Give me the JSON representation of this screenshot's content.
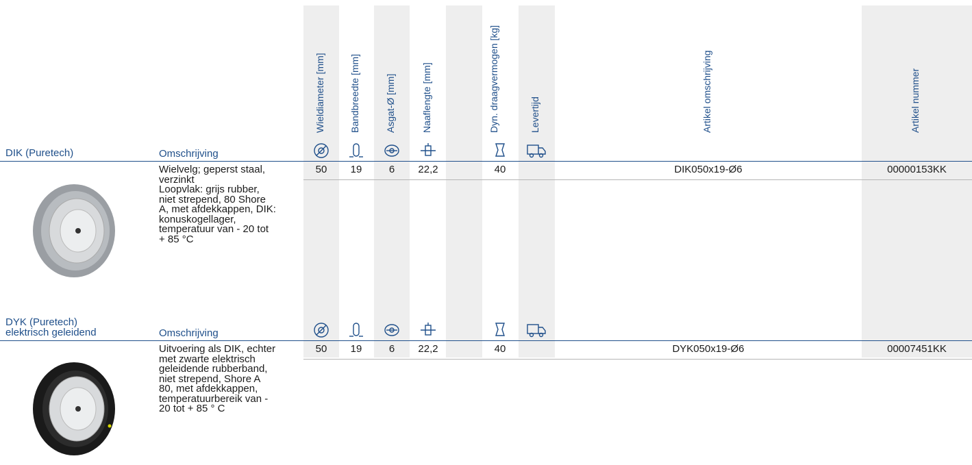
{
  "header": {
    "columns": [
      "Wieldiameter [mm]",
      "Bandbreedte [mm]",
      "Asgat-Ø [mm]",
      "Naaflengte [mm]",
      "Dyn. draagvermogen [kg]",
      "Levertijd",
      "Artikel omschrijving",
      "Artikel nummer"
    ]
  },
  "products": [
    {
      "name": [
        "DIK (Puretech)"
      ],
      "description_label": "Omschrijving",
      "description": [
        "Wielvelg; geperst staal,",
        "verzinkt",
        "Loopvlak: grijs rubber,",
        "niet strepend, 80 Shore",
        "A, met afdekkappen, DIK:",
        "konuskogellager,",
        "temperatuur van - 20 tot",
        "+ 85 °C"
      ],
      "values": [
        50,
        19,
        6,
        "22,2",
        40
      ],
      "article_description": "DIK050x19-Ø6",
      "article_number": "00000153KK"
    },
    {
      "name": [
        "DYK (Puretech)",
        "elektrisch geleidend"
      ],
      "description_label": "Omschrijving",
      "description": [
        "Uitvoering als DIK, echter",
        "met zwarte elektrisch",
        "geleidende rubberband,",
        "niet strepend, Shore A",
        "80, met afdekkappen,",
        "temperatuurbereik van -",
        "20 tot + 85 ° C"
      ],
      "values": [
        50,
        19,
        6,
        "22,2",
        40
      ],
      "article_description": "DYK050x19-Ø6",
      "article_number": "00007451KK"
    }
  ]
}
